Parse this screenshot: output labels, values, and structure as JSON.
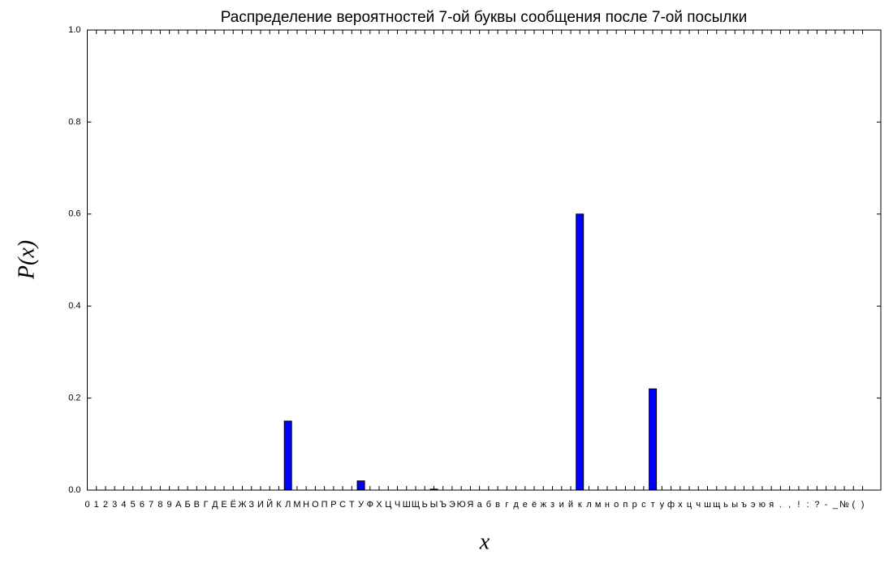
{
  "chart_data": {
    "type": "bar",
    "title": "Распределение вероятностей 7-ой буквы сообщения после 7-ой посылки",
    "xlabel": "x",
    "ylabel": "P(x)",
    "categories": [
      "0",
      "1",
      "2",
      "3",
      "4",
      "5",
      "6",
      "7",
      "8",
      "9",
      "А",
      "Б",
      "В",
      "Г",
      "Д",
      "Е",
      "Ё",
      "Ж",
      "З",
      "И",
      "Й",
      "К",
      "Л",
      "М",
      "Н",
      "О",
      "П",
      "Р",
      "С",
      "Т",
      "У",
      "Ф",
      "Х",
      "Ц",
      "Ч",
      "Ш",
      "Щ",
      "Ь",
      "Ы",
      "Ъ",
      "Э",
      "Ю",
      "Я",
      "а",
      "б",
      "в",
      "г",
      "д",
      "е",
      "ё",
      "ж",
      "з",
      "и",
      "й",
      "к",
      "л",
      "м",
      "н",
      "о",
      "п",
      "р",
      "с",
      "т",
      "у",
      "ф",
      "х",
      "ц",
      "ч",
      "ш",
      "щ",
      "ь",
      "ы",
      "ъ",
      "э",
      "ю",
      "я",
      ".",
      ",",
      "!",
      ":",
      "?",
      "-",
      "_",
      "№",
      "(",
      ")"
    ],
    "values": [
      0,
      0,
      0,
      0,
      0,
      0,
      0,
      0,
      0,
      0,
      0,
      0,
      0,
      0,
      0,
      0,
      0,
      0,
      0,
      0,
      0,
      0,
      0.15,
      0,
      0,
      0,
      0,
      0,
      0,
      0,
      0.02,
      0,
      0,
      0,
      0,
      0,
      0,
      0,
      0.002,
      0,
      0,
      0,
      0,
      0,
      0,
      0,
      0,
      0,
      0,
      0,
      0,
      0,
      0,
      0,
      0.6,
      0,
      0,
      0,
      0,
      0,
      0,
      0,
      0.22,
      0,
      0,
      0,
      0,
      0,
      0,
      0,
      0,
      0,
      0,
      0,
      0,
      0,
      0,
      0,
      0,
      0,
      0,
      0,
      0,
      0,
      0,
      0
    ],
    "color": "#0000ff",
    "xlim": [
      0,
      87
    ],
    "ylim": [
      0,
      1
    ],
    "yticks": [
      {
        "value": 0,
        "label": "0.0"
      },
      0.2,
      0.4,
      0.6,
      0.8,
      {
        "value": 1,
        "label": "1.0"
      }
    ]
  }
}
